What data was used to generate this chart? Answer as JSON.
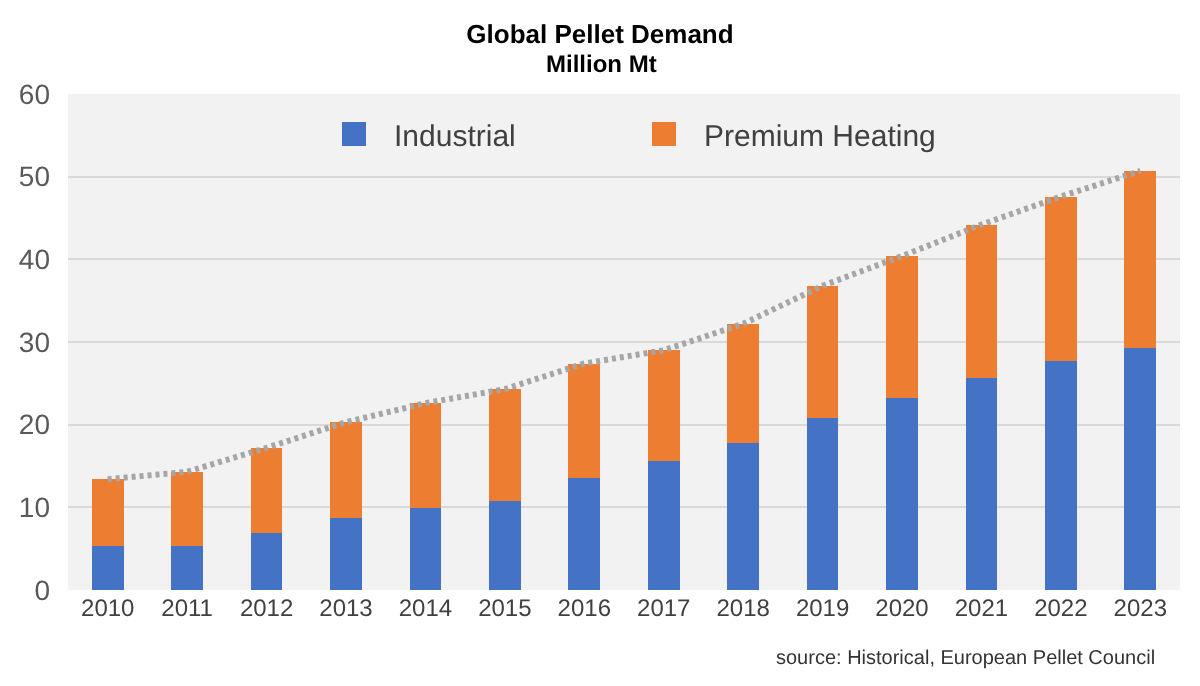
{
  "chart_data": {
    "type": "bar",
    "title": "Global Pellet Demand",
    "subtitle": "Million Mt",
    "categories": [
      "2010",
      "2011",
      "2012",
      "2013",
      "2014",
      "2015",
      "2016",
      "2017",
      "2018",
      "2019",
      "2020",
      "2021",
      "2022",
      "2023"
    ],
    "stacked": true,
    "series": [
      {
        "name": "Industrial",
        "color": "#4472c4",
        "values": [
          5.3,
          5.3,
          6.9,
          8.7,
          9.9,
          10.8,
          13.5,
          15.6,
          17.8,
          20.8,
          23.2,
          25.6,
          27.7,
          29.3
        ]
      },
      {
        "name": "Premium Heating",
        "color": "#ed7d31",
        "values": [
          8.1,
          9.0,
          10.3,
          11.6,
          12.7,
          13.5,
          13.9,
          13.4,
          14.4,
          16.0,
          17.2,
          18.6,
          19.9,
          21.4
        ]
      },
      {
        "type": "line",
        "color": "#a6a6a6",
        "line_style": "dotted",
        "values": [
          13.4,
          14.3,
          17.2,
          20.3,
          22.6,
          24.3,
          27.4,
          29.0,
          32.2,
          36.8,
          40.4,
          44.2,
          47.6,
          50.7
        ]
      }
    ],
    "ylim": [
      0,
      60
    ],
    "yticks": [
      0,
      10,
      20,
      30,
      40,
      50,
      60
    ],
    "grid": "y",
    "legend": "top",
    "annotations": [
      "source: Historical, European Pellet Council"
    ]
  }
}
